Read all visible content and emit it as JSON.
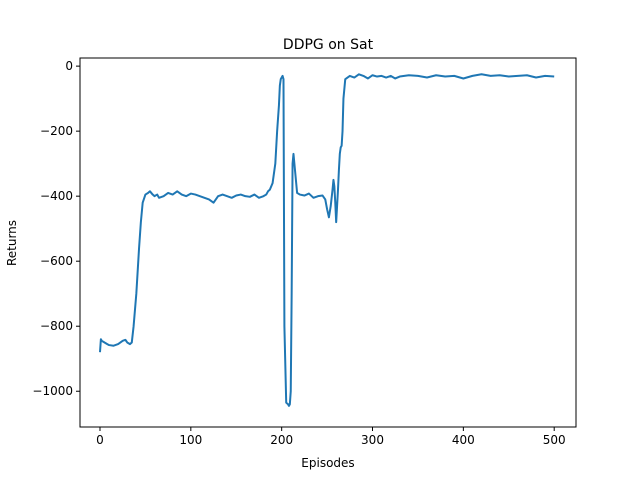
{
  "chart_data": {
    "type": "line",
    "title": "DDPG on Sat",
    "xlabel": "Episodes",
    "ylabel": "Returns",
    "xlim": [
      -22,
      524
    ],
    "ylim": [
      -1110,
      25
    ],
    "xticks": [
      0,
      100,
      200,
      300,
      400,
      500
    ],
    "yticks": [
      -1000,
      -800,
      -600,
      -400,
      -200,
      0
    ],
    "xtick_labels": [
      "0",
      "100",
      "200",
      "300",
      "400",
      "500"
    ],
    "ytick_labels": [
      "−1000",
      "−800",
      "−600",
      "−400",
      "−200",
      "0"
    ],
    "grid": false,
    "legend": "none",
    "series": [
      {
        "color": "#1f77b4",
        "x": [
          0,
          1,
          2,
          5,
          8,
          10,
          15,
          20,
          25,
          28,
          30,
          33,
          35,
          37,
          40,
          43,
          45,
          47,
          50,
          53,
          55,
          58,
          60,
          63,
          65,
          70,
          75,
          80,
          85,
          90,
          95,
          100,
          105,
          110,
          115,
          120,
          125,
          130,
          135,
          140,
          145,
          150,
          155,
          160,
          165,
          170,
          175,
          180,
          183,
          185,
          187,
          190,
          193,
          195,
          197,
          198,
          199,
          200,
          201,
          202,
          203,
          205,
          207,
          208,
          209,
          210,
          211,
          212,
          213,
          215,
          217,
          220,
          225,
          230,
          235,
          240,
          245,
          248,
          250,
          252,
          254,
          256,
          257,
          258,
          259,
          260,
          261,
          262,
          263,
          264,
          265,
          266,
          267,
          268,
          270,
          275,
          280,
          285,
          290,
          295,
          300,
          305,
          310,
          315,
          320,
          325,
          330,
          340,
          350,
          360,
          370,
          380,
          390,
          400,
          410,
          420,
          430,
          440,
          450,
          460,
          470,
          480,
          490,
          500
        ],
        "y": [
          -880,
          -840,
          -845,
          -850,
          -855,
          -858,
          -860,
          -855,
          -845,
          -842,
          -850,
          -855,
          -850,
          -800,
          -700,
          -560,
          -480,
          -420,
          -395,
          -390,
          -385,
          -395,
          -400,
          -395,
          -405,
          -400,
          -390,
          -395,
          -385,
          -395,
          -400,
          -392,
          -395,
          -400,
          -405,
          -410,
          -420,
          -400,
          -395,
          -400,
          -405,
          -398,
          -395,
          -400,
          -402,
          -395,
          -405,
          -400,
          -395,
          -385,
          -380,
          -360,
          -300,
          -200,
          -120,
          -60,
          -40,
          -35,
          -30,
          -40,
          -800,
          -1035,
          -1040,
          -1045,
          -1040,
          -1000,
          -700,
          -300,
          -270,
          -330,
          -390,
          -395,
          -398,
          -392,
          -405,
          -400,
          -398,
          -410,
          -440,
          -465,
          -430,
          -380,
          -350,
          -370,
          -420,
          -480,
          -430,
          -380,
          -320,
          -270,
          -250,
          -245,
          -200,
          -100,
          -40,
          -30,
          -35,
          -25,
          -30,
          -38,
          -28,
          -32,
          -30,
          -35,
          -30,
          -38,
          -32,
          -28,
          -30,
          -35,
          -28,
          -32,
          -30,
          -38,
          -30,
          -25,
          -30,
          -28,
          -32,
          -30,
          -28,
          -35,
          -30,
          -32
        ]
      }
    ]
  }
}
